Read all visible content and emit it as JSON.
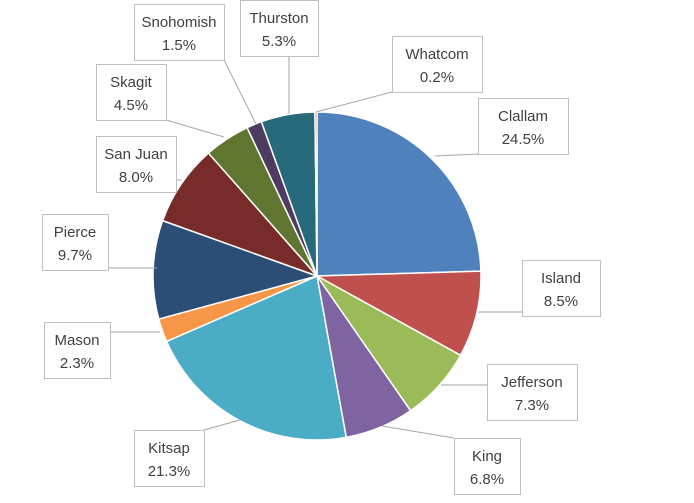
{
  "chart_data": {
    "type": "pie",
    "title": "",
    "start_angle_deg": 90,
    "direction": "clockwise",
    "legend": "none",
    "slices": [
      {
        "label": "Clallam",
        "value": 24.5,
        "display": "24.5%",
        "color": "#4f81bd"
      },
      {
        "label": "Island",
        "value": 8.5,
        "display": "8.5%",
        "color": "#c0504d"
      },
      {
        "label": "Jefferson",
        "value": 7.3,
        "display": "7.3%",
        "color": "#9bbb59"
      },
      {
        "label": "King",
        "value": 6.8,
        "display": "6.8%",
        "color": "#8064a2"
      },
      {
        "label": "Kitsap",
        "value": 21.3,
        "display": "21.3%",
        "color": "#4bacc6"
      },
      {
        "label": "Mason",
        "value": 2.3,
        "display": "2.3%",
        "color": "#f79646"
      },
      {
        "label": "Pierce",
        "value": 9.7,
        "display": "9.7%",
        "color": "#2c4d75"
      },
      {
        "label": "San Juan",
        "value": 8.0,
        "display": "8.0%",
        "color": "#772c2a"
      },
      {
        "label": "Skagit",
        "value": 4.5,
        "display": "4.5%",
        "color": "#5f7530"
      },
      {
        "label": "Snohomish",
        "value": 1.5,
        "display": "1.5%",
        "color": "#4d3b62"
      },
      {
        "label": "Thurston",
        "value": 5.3,
        "display": "5.3%",
        "color": "#276a7c"
      },
      {
        "label": "Whatcom",
        "value": 0.2,
        "display": "0.2%",
        "color": "#b65708"
      }
    ]
  }
}
